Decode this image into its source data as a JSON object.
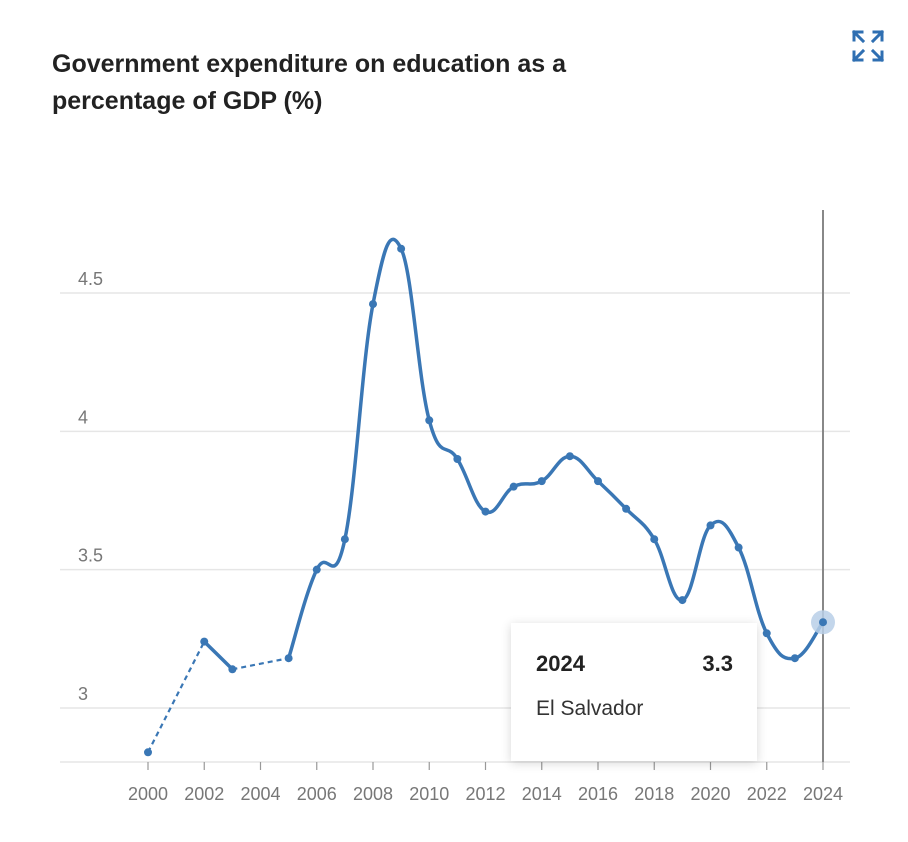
{
  "header": {
    "title": "Government expenditure on education as a percentage of GDP (%)"
  },
  "toolbar": {
    "expand_icon": "expand-arrows-icon"
  },
  "colors": {
    "line": "#3a77b5",
    "grid": "#e6e6e6",
    "axis_text": "#777777",
    "crosshair": "#888888",
    "highlight": "#b9cfe8"
  },
  "tooltip": {
    "year": "2024",
    "value": "3.3",
    "country": "El Salvador"
  },
  "chart_data": {
    "type": "line",
    "title": "Government expenditure on education as a percentage of GDP (%)",
    "xlabel": "",
    "ylabel": "",
    "x_ticks": [
      "2000",
      "2002",
      "2004",
      "2006",
      "2008",
      "2010",
      "2012",
      "2014",
      "2016",
      "2018",
      "2020",
      "2022",
      "2024"
    ],
    "y_ticks": [
      "3",
      "3.5",
      "4",
      "4.5"
    ],
    "xlim": [
      2000,
      2024
    ],
    "ylim": [
      2.8,
      4.8
    ],
    "grid": "horizontal",
    "series": [
      {
        "name": "El Salvador",
        "x": [
          2000,
          2002,
          2003,
          2005,
          2006,
          2007,
          2008,
          2009,
          2010,
          2011,
          2012,
          2013,
          2014,
          2015,
          2016,
          2017,
          2018,
          2019,
          2020,
          2021,
          2022,
          2023,
          2024
        ],
        "values": [
          2.84,
          3.24,
          3.14,
          3.18,
          3.5,
          3.61,
          4.46,
          4.66,
          4.04,
          3.9,
          3.71,
          3.8,
          3.82,
          3.91,
          3.82,
          3.72,
          3.61,
          3.39,
          3.66,
          3.58,
          3.27,
          3.18,
          3.31
        ],
        "dashed_segments": [
          [
            2000,
            2002
          ],
          [
            2003,
            2005
          ]
        ]
      }
    ],
    "highlighted_point": {
      "x": 2024,
      "y": 3.31
    }
  }
}
